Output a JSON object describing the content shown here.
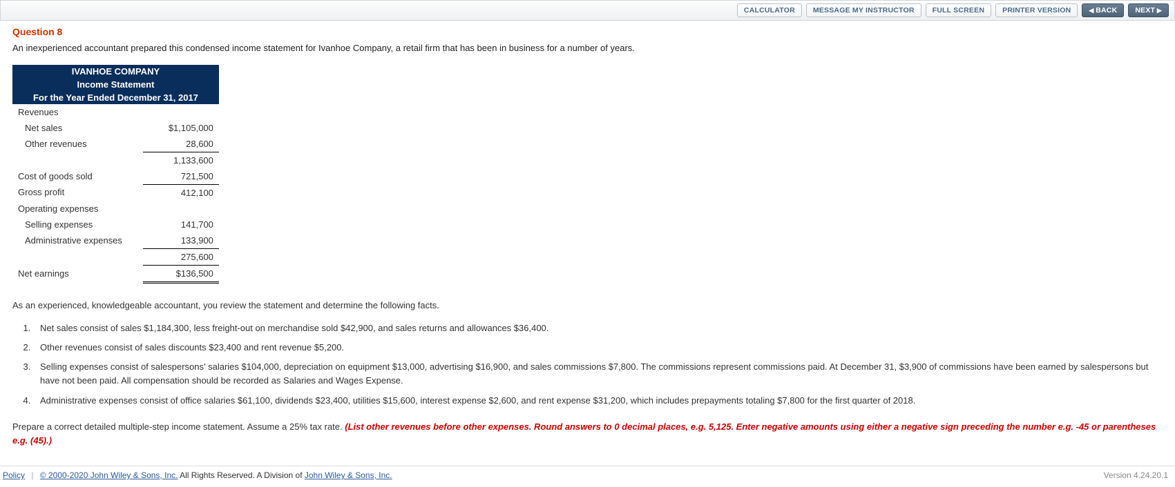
{
  "toolbar": {
    "calculator": "CALCULATOR",
    "message": "MESSAGE MY INSTRUCTOR",
    "fullscreen": "FULL SCREEN",
    "printer": "PRINTER VERSION",
    "back": "BACK",
    "next": "NEXT"
  },
  "question": {
    "title": "Question 8",
    "intro": "An inexperienced accountant prepared this condensed income statement for Ivanhoe Company, a retail firm that has been in business for a number of years."
  },
  "statement": {
    "company": "IVANHOE COMPANY",
    "report": "Income Statement",
    "period": "For the Year Ended December 31, 2017",
    "rows": {
      "revenues_hdr": "Revenues",
      "net_sales_lbl": "Net sales",
      "net_sales_amt": "$1,105,000",
      "other_rev_lbl": "Other revenues",
      "other_rev_amt": "28,600",
      "rev_total": "1,133,600",
      "cogs_lbl": "Cost of goods sold",
      "cogs_amt": "721,500",
      "gp_lbl": "Gross profit",
      "gp_amt": "412,100",
      "opex_hdr": "Operating expenses",
      "selling_lbl": "Selling expenses",
      "selling_amt": "141,700",
      "admin_lbl": "Administrative expenses",
      "admin_amt": "133,900",
      "opex_total": "275,600",
      "net_lbl": "Net earnings",
      "net_amt": "$136,500"
    }
  },
  "review_text": "As an experienced, knowledgeable accountant, you review the statement and determine the following facts.",
  "facts": [
    "Net sales consist of sales $1,184,300, less freight-out on merchandise sold $42,900, and sales returns and allowances $36,400.",
    "Other revenues consist of sales discounts $23,400 and rent revenue $5,200.",
    "Selling expenses consist of salespersons' salaries $104,000, depreciation on equipment $13,000, advertising $16,900, and sales commissions $7,800. The commissions represent commissions paid. At December 31, $3,900 of commissions have been earned by salespersons but have not been paid. All compensation should be recorded as Salaries and Wages Expense.",
    "Administrative expenses consist of office salaries $61,100, dividends $23,400, utilities $15,600, interest expense $2,600, and rent expense $31,200, which includes prepayments totaling $7,800 for the first quarter of 2018."
  ],
  "instruction": {
    "lead": "Prepare a correct detailed multiple-step income statement. Assume a 25% tax rate. ",
    "red": "(List other revenues before other expenses. Round answers to 0 decimal places, e.g. 5,125. Enter negative amounts using either a negative sign preceding the number e.g. -45 or parentheses e.g. (45).)"
  },
  "footer": {
    "policy": "Policy",
    "copyright_link": "© 2000-2020 John Wiley & Sons, Inc.",
    "rights": " All Rights Reserved. A Division of ",
    "division_link": "John Wiley & Sons, Inc.",
    "version": "Version 4.24.20.1"
  }
}
